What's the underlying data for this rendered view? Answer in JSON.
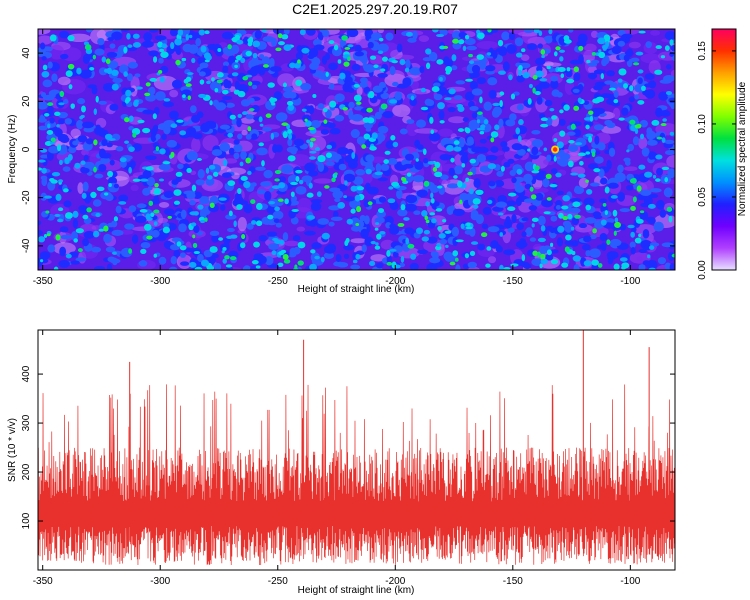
{
  "title": "C2E1.2025.297.20.19.R07",
  "colors": {
    "snr_line": "#e8302c",
    "axis": "#000000",
    "background": "#ffffff"
  },
  "chart_data": [
    {
      "type": "heatmap",
      "title": "C2E1.2025.297.20.19.R07",
      "xlabel": "Height of straight line (km)",
      "ylabel": "Frequency (Hz)",
      "xlim": [
        -352,
        -81
      ],
      "ylim": [
        -50,
        50
      ],
      "xticks": [
        -350,
        -300,
        -250,
        -200,
        -150,
        -100
      ],
      "yticks": [
        -40,
        -20,
        0,
        20,
        40
      ],
      "colorbar": {
        "label": "Normalized spectral amplitude",
        "range": [
          0.0,
          0.165
        ],
        "ticks": [
          0.0,
          0.05,
          0.1,
          0.15
        ],
        "tick_labels": [
          "0.00",
          "0.05",
          "0.10",
          "0.15"
        ],
        "colormap": [
          "#e8e0ff",
          "#b040ff",
          "#7000ff",
          "#2020ff",
          "#0090ff",
          "#00e0e0",
          "#00e040",
          "#80ff00",
          "#ffff00",
          "#ffa000",
          "#ff3000",
          "#ff0060"
        ]
      },
      "peak": {
        "height_km": -132,
        "frequency_hz": 0,
        "amplitude": 0.165
      },
      "description": "dense speckle of blue/violet/cyan blobs with sparse green peaks; brightest isolated peak near (-132 km, 0 Hz)"
    },
    {
      "type": "line",
      "xlabel": "Height of straight line (km)",
      "ylabel": "SNR (10 * v/v)",
      "xlim": [
        -352,
        -81
      ],
      "ylim": [
        0,
        490
      ],
      "xticks": [
        -350,
        -300,
        -250,
        -200,
        -150,
        -100
      ],
      "yticks": [
        100,
        200,
        300,
        400
      ],
      "series": [
        {
          "name": "SNR",
          "color": "#e8302c",
          "typical_range": [
            40,
            230
          ],
          "spike_max": 490
        }
      ],
      "notable_spikes": [
        {
          "x": -313,
          "y": 425
        },
        {
          "x": -239,
          "y": 470
        },
        {
          "x": -120,
          "y": 490
        },
        {
          "x": -92,
          "y": 455
        }
      ]
    }
  ]
}
